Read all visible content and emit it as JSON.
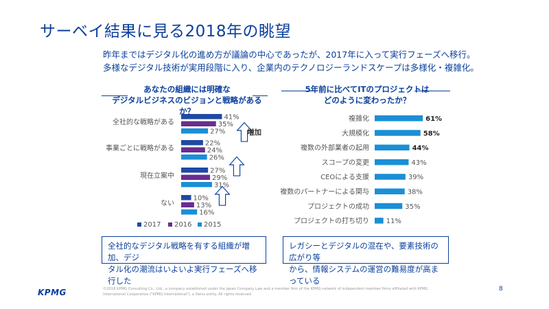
{
  "slide": {
    "title": "サーベイ結果に見る2018年の眺望",
    "intro_line1": "昨年まではデジタル化の進め方が議論の中心であったが、2017年に入って実行フェーズへ移行。",
    "intro_line2": "多様なデジタル技術が実用段階に入り、企業内のテクノロジーランドスケープは多様化・複雑化。"
  },
  "left_heading": {
    "line1": "あなたの組織には明確な",
    "line2": "デジタルビジネスのビジョンと戦略があるか？"
  },
  "right_heading": {
    "line1": "5年前に比べてITのプロジェクトは",
    "line2": "どのように変わったか？"
  },
  "annotation": {
    "increase_label": "増加"
  },
  "left_conclusion": {
    "line1": "全社的なデジタル戦略を有する組織が増加、デジ",
    "line2": "タル化の潮流はいよいよ実行フェーズへ移行した"
  },
  "right_conclusion": {
    "line1": "レガシーとデジタルの混在や、要素技術の広がり等",
    "line2": "から、情報システムの運営の難易度が高まっている"
  },
  "footer": {
    "logo": "KPMG",
    "disclaimer": "©2018 KPMG Consulting Co., Ltd., a company established under the Japan Company Law and a member firm of the KPMG network of independent member firms affiliated with KPMG International Cooperative (\"KPMG International\"), a Swiss entity. All rights reserved.",
    "page": "8"
  },
  "colors": {
    "title_blue": "#0a3f9c",
    "series_2017": "#1e49a5",
    "series_2016": "#6a2c8e",
    "series_2015": "#1a8fd6",
    "right_bar": "#1a8fd6"
  },
  "chart_data": [
    {
      "type": "bar",
      "orientation": "horizontal",
      "categories": [
        "全社的な戦略がある",
        "事業ごとに戦略がある",
        "現在立案中",
        "ない"
      ],
      "series": [
        {
          "name": "2017",
          "values": [
            41,
            22,
            27,
            10
          ]
        },
        {
          "name": "2016",
          "values": [
            35,
            24,
            29,
            13
          ]
        },
        {
          "name": "2015",
          "values": [
            27,
            26,
            31,
            16
          ]
        }
      ],
      "value_suffix": "%",
      "legend": "bottom-left"
    },
    {
      "type": "bar",
      "orientation": "horizontal",
      "categories": [
        "複雑化",
        "大規模化",
        "複数の外部業者の起用",
        "スコープの変更",
        "CEOによる支援",
        "複数のパートナーによる関与",
        "プロジェクトの成功",
        "プロジェクトの打ち切り"
      ],
      "values": [
        61,
        58,
        44,
        43,
        39,
        38,
        35,
        11
      ],
      "value_suffix": "%",
      "bold_labels_top": 3
    }
  ]
}
